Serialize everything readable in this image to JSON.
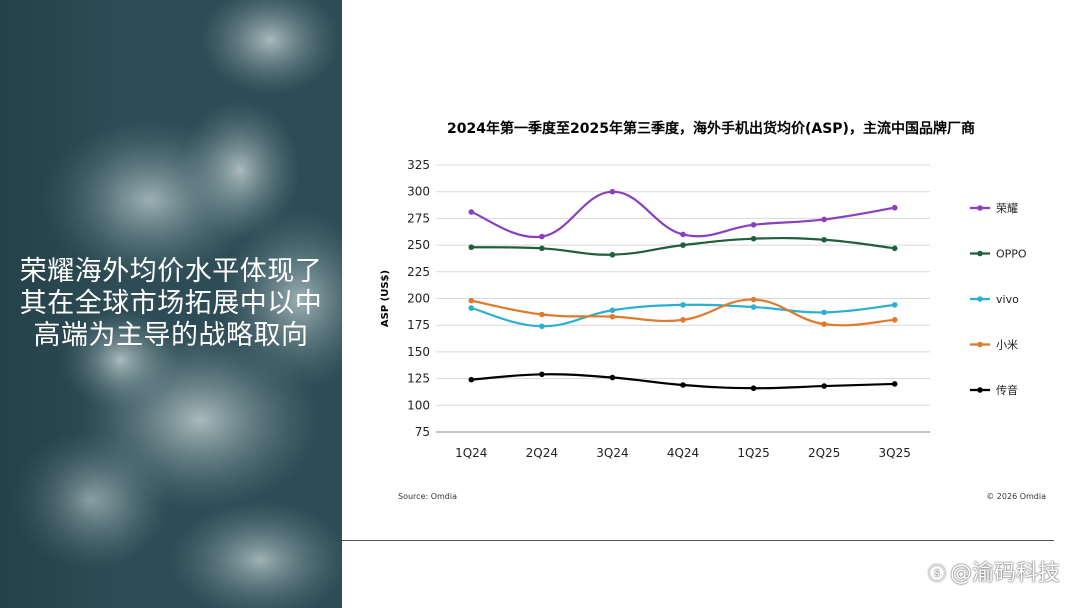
{
  "headline": {
    "lines": [
      "荣耀海外均价水平体现了",
      "其在全球市场拓展中以中",
      "高端为主导的战略取向"
    ]
  },
  "chart_data": {
    "type": "line",
    "title": "2024年第一季度至2025年第三季度，海外手机出货均价(ASP)，主流中国品牌厂商",
    "xlabel": "",
    "ylabel": "ASP (US$)",
    "ylim": [
      75,
      325
    ],
    "yticks": [
      75,
      100,
      125,
      150,
      175,
      200,
      225,
      250,
      275,
      300,
      325
    ],
    "categories": [
      "1Q24",
      "2Q24",
      "3Q24",
      "4Q24",
      "1Q25",
      "2Q25",
      "3Q25"
    ],
    "grid": true,
    "legend_position": "right",
    "series": [
      {
        "name": "荣耀",
        "color": "#8a3fbf",
        "values": [
          281,
          258,
          300,
          260,
          269,
          274,
          285
        ]
      },
      {
        "name": "OPPO",
        "color": "#1f5e3e",
        "values": [
          248,
          247,
          241,
          250,
          256,
          255,
          247
        ]
      },
      {
        "name": "vivo",
        "color": "#2bb0cf",
        "values": [
          191,
          174,
          189,
          194,
          192,
          187,
          194
        ]
      },
      {
        "name": "小米",
        "color": "#e07a2a",
        "values": [
          198,
          185,
          183,
          180,
          199,
          176,
          180
        ]
      },
      {
        "name": "传音",
        "color": "#000000",
        "values": [
          124,
          129,
          126,
          119,
          116,
          118,
          120
        ]
      }
    ]
  },
  "footer": {
    "source": "Source: Omdia",
    "copyright": "© 2026 Omdia"
  },
  "watermark": {
    "logo": "ⓢ",
    "text": "@渝码科技"
  }
}
